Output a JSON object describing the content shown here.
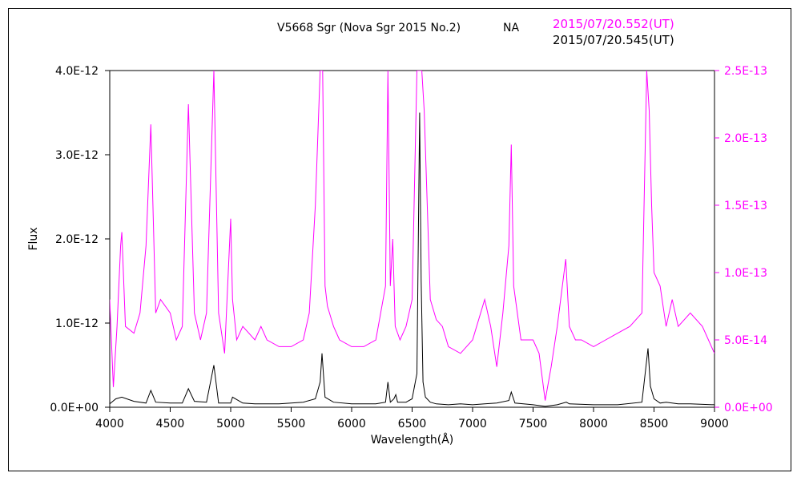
{
  "header": {
    "object_label": "V5668 Sgr (Nova Sgr 2015 No.2)",
    "site_label": "NA",
    "date_magenta": "2015/07/20.552(UT)",
    "date_black": "2015/07/20.545(UT)"
  },
  "colors": {
    "magenta": "#ff00ff",
    "black": "#000000"
  },
  "chart_data": {
    "type": "line",
    "title": "V5668 Sgr (Nova Sgr 2015 No.2)",
    "xlabel": "Wavelength(Å)",
    "ylabel": "Flux",
    "xlim": [
      4000,
      9000
    ],
    "ylim_left": [
      0,
      4e-12
    ],
    "ylim_right": [
      0,
      2.5e-13
    ],
    "grid": false,
    "x_ticks": [
      4000,
      4500,
      5000,
      5500,
      6000,
      6500,
      7000,
      7500,
      8000,
      8500,
      9000
    ],
    "x_tick_labels": [
      "4000",
      "4500",
      "5000",
      "5500",
      "6000",
      "6500",
      "7000",
      "7500",
      "8000",
      "8500",
      "9000"
    ],
    "y_left_ticks": [
      0,
      1e-12,
      2e-12,
      3e-12,
      4e-12
    ],
    "y_left_tick_labels": [
      "0.0E+00",
      "1.0E-12",
      "2.0E-12",
      "3.0E-12",
      "4.0E-12"
    ],
    "y_right_ticks": [
      0,
      5e-14,
      1e-13,
      1.5e-13,
      2e-13,
      2.5e-13
    ],
    "y_right_tick_labels": [
      "0.0E+00",
      "5.0E-14",
      "1.0E-13",
      "1.5E-13",
      "2.0E-13",
      "2.5E-13"
    ],
    "series": [
      {
        "color": "#000000",
        "axis": "left",
        "x": [
          4000,
          4050,
          4100,
          4200,
          4300,
          4340,
          4380,
          4500,
          4600,
          4650,
          4700,
          4800,
          4861,
          4900,
          5000,
          5015,
          5100,
          5200,
          5300,
          5400,
          5500,
          5600,
          5700,
          5740,
          5755,
          5780,
          5850,
          6000,
          6100,
          6200,
          6280,
          6300,
          6320,
          6350,
          6365,
          6380,
          6450,
          6500,
          6540,
          6562,
          6575,
          6590,
          6610,
          6650,
          6700,
          6800,
          6900,
          7000,
          7100,
          7200,
          7300,
          7320,
          7350,
          7500,
          7600,
          7700,
          7775,
          7800,
          8000,
          8200,
          8400,
          8450,
          8470,
          8500,
          8550,
          8600,
          8700,
          8800,
          9000
        ],
        "y": [
          4e-14,
          1e-13,
          1.2e-13,
          7e-14,
          5e-14,
          2e-13,
          6e-14,
          5e-14,
          5e-14,
          2.2e-13,
          7e-14,
          6e-14,
          5e-13,
          5e-14,
          5e-14,
          1.2e-13,
          5e-14,
          4e-14,
          4e-14,
          4e-14,
          5e-14,
          6e-14,
          1e-13,
          3e-13,
          6.4e-13,
          1.2e-13,
          6e-14,
          4e-14,
          4e-14,
          4e-14,
          6e-14,
          3e-13,
          6e-14,
          1e-13,
          1.5e-13,
          6e-14,
          6e-14,
          1e-13,
          4e-13,
          3.5e-12,
          1.5e-12,
          3e-13,
          1.2e-13,
          6e-14,
          4e-14,
          3e-14,
          4e-14,
          3e-14,
          4e-14,
          5e-14,
          8e-14,
          1.8e-13,
          5e-14,
          3e-14,
          1e-14,
          3e-14,
          6e-14,
          4e-14,
          3e-14,
          3e-14,
          6e-14,
          7e-13,
          2.5e-13,
          1e-13,
          5e-14,
          6e-14,
          4e-14,
          4e-14,
          3e-14
        ]
      },
      {
        "color": "#ff00ff",
        "axis": "right",
        "x": [
          4000,
          4030,
          4060,
          4090,
          4100,
          4130,
          4200,
          4250,
          4300,
          4340,
          4380,
          4420,
          4500,
          4550,
          4600,
          4650,
          4700,
          4750,
          4800,
          4861,
          4900,
          4950,
          5000,
          5015,
          5050,
          5100,
          5200,
          5250,
          5300,
          5400,
          5500,
          5600,
          5650,
          5700,
          5740,
          5760,
          5780,
          5800,
          5850,
          5900,
          6000,
          6100,
          6200,
          6280,
          6300,
          6320,
          6340,
          6360,
          6400,
          6450,
          6500,
          6540,
          6560,
          6580,
          6600,
          6650,
          6700,
          6750,
          6800,
          6900,
          7000,
          7100,
          7150,
          7200,
          7250,
          7300,
          7320,
          7340,
          7400,
          7500,
          7550,
          7600,
          7650,
          7700,
          7770,
          7800,
          7850,
          7900,
          8000,
          8100,
          8200,
          8300,
          8400,
          8440,
          8460,
          8480,
          8500,
          8550,
          8600,
          8650,
          8700,
          8800,
          8900,
          9000
        ],
        "y": [
          8e-14,
          1.5e-14,
          6e-14,
          1.2e-13,
          1.3e-13,
          6e-14,
          5.5e-14,
          7e-14,
          1.2e-13,
          2.1e-13,
          7e-14,
          8e-14,
          7e-14,
          5e-14,
          6e-14,
          2.25e-13,
          7e-14,
          5e-14,
          7e-14,
          2.5e-13,
          7e-14,
          4e-14,
          1.4e-13,
          8e-14,
          5e-14,
          6e-14,
          5e-14,
          6e-14,
          5e-14,
          4.5e-14,
          4.5e-14,
          5e-14,
          7e-14,
          1.5e-13,
          2.5e-13,
          2.5e-13,
          9e-14,
          7.5e-14,
          6e-14,
          5e-14,
          4.5e-14,
          4.5e-14,
          5e-14,
          9e-14,
          2.5e-13,
          9e-14,
          1.25e-13,
          6e-14,
          5e-14,
          6e-14,
          8e-14,
          2.5e-13,
          2.5e-13,
          2.5e-13,
          2.2e-13,
          8e-14,
          6.5e-14,
          6e-14,
          4.5e-14,
          4e-14,
          5e-14,
          8e-14,
          6e-14,
          3e-14,
          7e-14,
          1.2e-13,
          1.95e-13,
          9e-14,
          5e-14,
          5e-14,
          4e-14,
          5e-15,
          3e-14,
          6e-14,
          1.1e-13,
          6e-14,
          5e-14,
          5e-14,
          4.5e-14,
          5e-14,
          5.5e-14,
          6e-14,
          7e-14,
          2.5e-13,
          2.2e-13,
          1.5e-13,
          1e-13,
          9e-14,
          6e-14,
          8e-14,
          6e-14,
          7e-14,
          6e-14,
          4e-14
        ]
      }
    ]
  }
}
